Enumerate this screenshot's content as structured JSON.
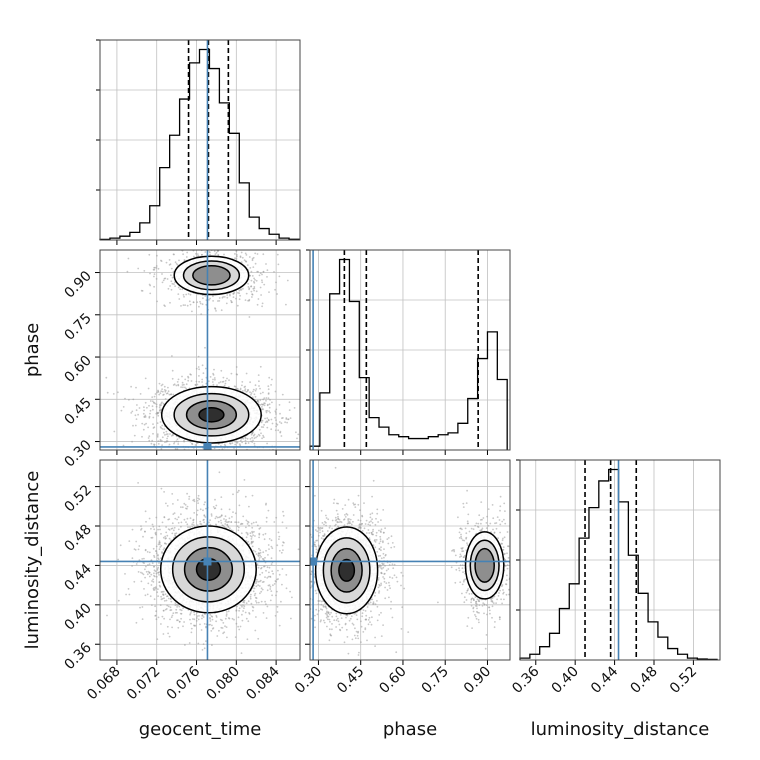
{
  "chart_data": {
    "type": "corner",
    "parameters": [
      "geocent_time",
      "phase",
      "luminosity_distance"
    ],
    "truths": {
      "geocent_time": 0.0771,
      "phase": 0.281,
      "luminosity_distance": 0.444
    },
    "grid": true,
    "colors": {
      "truth": "#4682b4",
      "hist": "#000000",
      "grid": "#c0c0c0",
      "contour": "#000000"
    },
    "panels": [
      {
        "id": "hist-geocent_time",
        "kind": "hist1d",
        "param": "geocent_time",
        "xlim": [
          0.0663,
          0.0864
        ],
        "xticks": [
          0.068,
          0.072,
          0.076,
          0.08,
          0.084
        ],
        "bins": [
          0.0663,
          0.0673,
          0.0683,
          0.0693,
          0.0703,
          0.0713,
          0.0723,
          0.0733,
          0.0743,
          0.0753,
          0.0763,
          0.0773,
          0.0783,
          0.0793,
          0.0803,
          0.0813,
          0.0823,
          0.0833,
          0.0843,
          0.0853,
          0.0863
        ],
        "counts": [
          0.3,
          1,
          2,
          4,
          9,
          18,
          38,
          55,
          74,
          93,
          100,
          90,
          72,
          56,
          30,
          12,
          6,
          3,
          1,
          0.4
        ],
        "quantiles": [
          0.0752,
          0.0772,
          0.0792
        ]
      },
      {
        "id": "hist-phase",
        "kind": "hist1d",
        "param": "phase",
        "xlim": [
          0.27,
          0.98
        ],
        "xticks": [
          0.3,
          0.45,
          0.6,
          0.75,
          0.9
        ],
        "bins": [
          0.27,
          0.305,
          0.34,
          0.375,
          0.41,
          0.445,
          0.48,
          0.515,
          0.55,
          0.585,
          0.62,
          0.655,
          0.69,
          0.725,
          0.76,
          0.795,
          0.83,
          0.865,
          0.9,
          0.935,
          0.97
        ],
        "counts": [
          2,
          30,
          82,
          100,
          78,
          38,
          17,
          12,
          8,
          7,
          6,
          6,
          7,
          8,
          9,
          14,
          27,
          48,
          62,
          37
        ],
        "quantiles": [
          0.392,
          0.47,
          0.867
        ]
      },
      {
        "id": "hist-luminosity_distance",
        "kind": "hist1d",
        "param": "luminosity_distance",
        "xlim": [
          0.344,
          0.547
        ],
        "xticks": [
          0.36,
          0.4,
          0.44,
          0.48,
          0.52
        ],
        "bins": [
          0.344,
          0.354,
          0.364,
          0.374,
          0.384,
          0.394,
          0.404,
          0.414,
          0.424,
          0.434,
          0.444,
          0.454,
          0.464,
          0.474,
          0.484,
          0.494,
          0.504,
          0.514,
          0.524,
          0.534,
          0.544
        ],
        "counts": [
          1,
          3,
          7,
          14,
          27,
          40,
          64,
          80,
          94,
          100,
          83,
          55,
          35,
          20,
          12,
          6,
          3,
          1,
          0.5,
          0.3
        ],
        "quantiles": [
          0.41,
          0.436,
          0.462
        ]
      },
      {
        "id": "density-phase-vs-geocent_time",
        "kind": "density2d",
        "xparam": "geocent_time",
        "yparam": "phase",
        "xlim": [
          0.0663,
          0.0864
        ],
        "ylim": [
          0.27,
          0.98
        ],
        "yticks": [
          0.3,
          0.45,
          0.6,
          0.75,
          0.9
        ],
        "modes": [
          {
            "x": 0.0775,
            "y": 0.395,
            "sx": 0.0025,
            "sy": 0.05,
            "w": 1.0
          },
          {
            "x": 0.0775,
            "y": 0.89,
            "sx": 0.0022,
            "sy": 0.04,
            "w": 0.4
          }
        ]
      },
      {
        "id": "density-luminosity_distance-vs-geocent_time",
        "kind": "density2d",
        "xparam": "geocent_time",
        "yparam": "luminosity_distance",
        "xlim": [
          0.0663,
          0.0864
        ],
        "ylim": [
          0.344,
          0.547
        ],
        "yticks": [
          0.36,
          0.4,
          0.44,
          0.48,
          0.52
        ],
        "modes": [
          {
            "x": 0.0772,
            "y": 0.436,
            "sx": 0.0024,
            "sy": 0.022,
            "w": 1.0
          }
        ]
      },
      {
        "id": "density-luminosity_distance-vs-phase",
        "kind": "density2d",
        "xparam": "phase",
        "yparam": "luminosity_distance",
        "xlim": [
          0.27,
          0.98
        ],
        "ylim": [
          0.344,
          0.547
        ],
        "modes": [
          {
            "x": 0.4,
            "y": 0.435,
            "sx": 0.055,
            "sy": 0.022,
            "w": 1.0
          },
          {
            "x": 0.89,
            "y": 0.44,
            "sx": 0.04,
            "sy": 0.02,
            "w": 0.45
          }
        ]
      }
    ]
  }
}
